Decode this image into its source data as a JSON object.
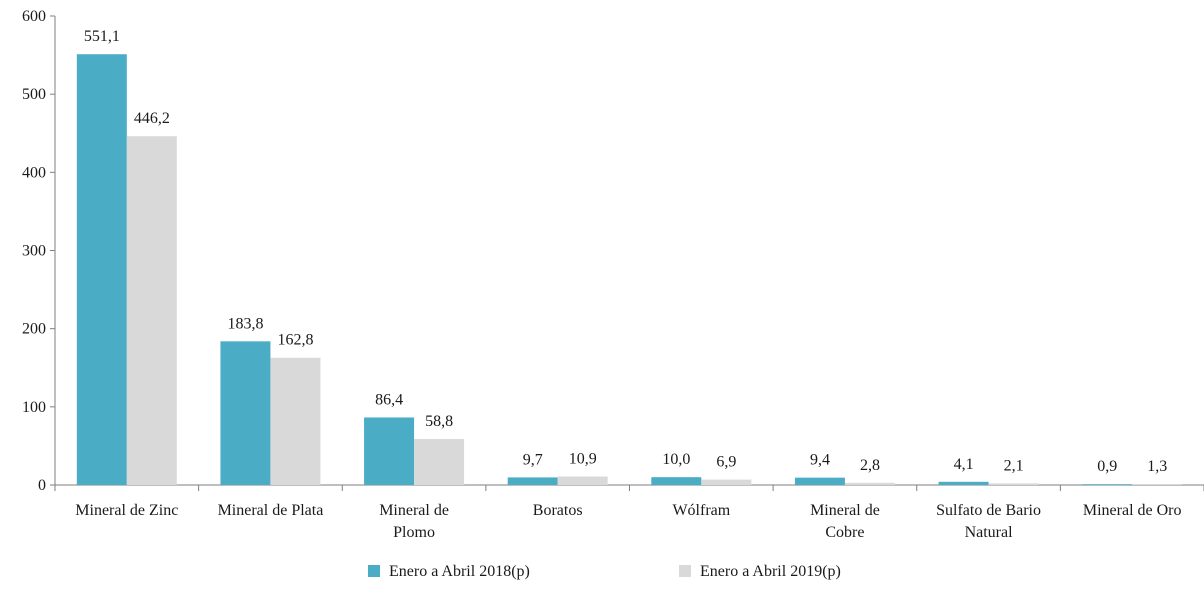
{
  "chart_data": {
    "type": "bar",
    "title": "",
    "xlabel": "",
    "ylabel": "",
    "ylim": [
      0,
      600
    ],
    "yticks": [
      0,
      100,
      200,
      300,
      400,
      500,
      600
    ],
    "ytick_labels": [
      "0",
      "100",
      "200",
      "300",
      "400",
      "500",
      "600"
    ],
    "grid": false,
    "legend_position": "bottom",
    "categories": [
      [
        "Mineral de Zinc"
      ],
      [
        "Mineral de Plata"
      ],
      [
        "Mineral de",
        "Plomo"
      ],
      [
        "Boratos"
      ],
      [
        "Wólfram"
      ],
      [
        "Mineral de",
        "Cobre"
      ],
      [
        "Sulfato de Bario",
        "Natural"
      ],
      [
        "Mineral de Oro"
      ]
    ],
    "series": [
      {
        "name": "Enero a Abril 2018(p)",
        "color": "#4bacc6",
        "values": [
          551.1,
          183.8,
          86.4,
          9.7,
          10.0,
          9.4,
          4.1,
          0.9
        ],
        "labels": [
          "551,1",
          "183,8",
          "86,4",
          "9,7",
          "10,0",
          "9,4",
          "4,1",
          "0,9"
        ]
      },
      {
        "name": "Enero a Abril 2019(p)",
        "color": "#d9d9d9",
        "values": [
          446.2,
          162.8,
          58.8,
          10.9,
          6.9,
          2.8,
          2.1,
          1.3
        ],
        "labels": [
          "446,2",
          "162,8",
          "58,8",
          "10,9",
          "6,9",
          "2,8",
          "2,1",
          "1,3"
        ]
      }
    ]
  }
}
